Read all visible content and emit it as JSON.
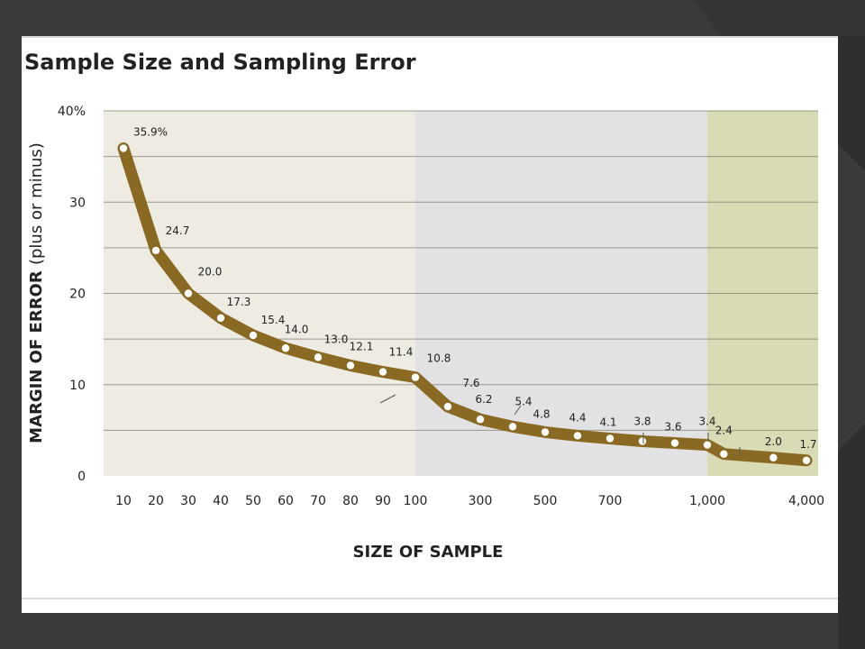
{
  "chart_data": {
    "type": "line",
    "title": "Sample Size and Sampling Error",
    "xlabel": "SIZE OF SAMPLE",
    "ylabel_main": "MARGIN OF ERROR",
    "ylabel_sub": "(plus or minus)",
    "ylim": [
      0,
      40
    ],
    "y_ticks": [
      "0",
      "10",
      "20",
      "30",
      "40%"
    ],
    "x_tick_labels": [
      "10",
      "20",
      "30",
      "40",
      "50",
      "60",
      "70",
      "80",
      "90",
      "100",
      "300",
      "500",
      "700",
      "1,000",
      "4,000"
    ],
    "grid": true,
    "series": [
      {
        "x": [
          10,
          20,
          30,
          40,
          50,
          60,
          70,
          80,
          90,
          100,
          200,
          300,
          400,
          500,
          600,
          700,
          800,
          900,
          1000,
          1500,
          3000,
          4000
        ],
        "values": [
          35.9,
          24.7,
          20.0,
          17.3,
          15.4,
          14.0,
          13.0,
          12.1,
          11.4,
          10.8,
          7.6,
          6.2,
          5.4,
          4.8,
          4.4,
          4.1,
          3.8,
          3.6,
          3.4,
          2.4,
          2.0,
          1.7
        ],
        "labels": [
          "35.9%",
          "24.7",
          "20.0",
          "17.3",
          "15.4",
          "14.0",
          "13.0",
          "12.1",
          "11.4",
          "10.8",
          "7.6",
          "6.2",
          "5.4",
          "4.8",
          "4.4",
          "4.1",
          "3.8",
          "3.6",
          "3.4",
          "2.4",
          "2.0",
          "1.7"
        ]
      }
    ]
  },
  "colors": {
    "line": "#8a6a22",
    "band_small": "#edebe2",
    "band_medium": "#e2e2e4",
    "band_large": "#d8dbb4",
    "grid": "#7a7a6a"
  }
}
